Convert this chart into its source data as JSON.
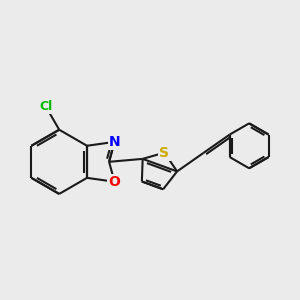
{
  "bg_color": "#ebebeb",
  "bond_color": "#1a1a1a",
  "bond_width": 1.5,
  "atom_colors": {
    "N": "#0000ff",
    "O": "#ff0000",
    "S": "#ccaa00",
    "Cl": "#00bb00",
    "C": "#1a1a1a"
  },
  "font_size": 10
}
